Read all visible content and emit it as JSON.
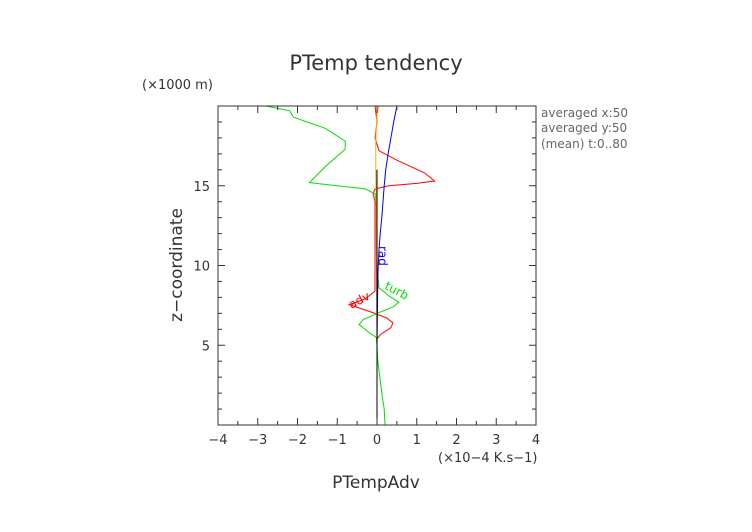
{
  "chart_data": {
    "type": "line",
    "title": "PTemp tendency",
    "xlabel": "PTempAdv",
    "ylabel": "z−coordinate",
    "x_scale_label": "(×10−4 K.s−1)",
    "y_scale_label": "(×1000 m)",
    "xlim": [
      -4,
      4
    ],
    "ylim": [
      0,
      20
    ],
    "x_ticks": [
      -4,
      -3,
      -2,
      -1,
      0,
      1,
      2,
      3,
      4
    ],
    "x_tick_labels": [
      "−4",
      "−3",
      "−2",
      "−1",
      "0",
      "1",
      "2",
      "3",
      "4"
    ],
    "y_ticks": [
      5,
      10,
      15
    ],
    "y_tick_labels": [
      "5",
      "10",
      "15"
    ],
    "grid": false,
    "annotations": [
      "averaged  x:50",
      "averaged  y:50",
      "(mean) t:0..80"
    ],
    "series": [
      {
        "name": "adv",
        "color": "#ff0000",
        "label_at": [
          -0.4,
          7.6
        ],
        "label_rotate": -28,
        "points": [
          [
            0,
            0
          ],
          [
            0,
            5.4
          ],
          [
            0.1,
            5.7
          ],
          [
            0.35,
            6.1
          ],
          [
            0.4,
            6.4
          ],
          [
            0.25,
            6.7
          ],
          [
            -0.05,
            7
          ],
          [
            -0.4,
            7.3
          ],
          [
            -0.7,
            7.55
          ],
          [
            -0.3,
            7.9
          ],
          [
            -0.05,
            8.4
          ],
          [
            -0.05,
            10
          ],
          [
            -0.05,
            12
          ],
          [
            -0.05,
            14
          ],
          [
            -0.1,
            14.5
          ],
          [
            -0.05,
            14.8
          ],
          [
            0.3,
            15
          ],
          [
            1.0,
            15.15
          ],
          [
            1.45,
            15.3
          ],
          [
            1.2,
            15.8
          ],
          [
            0.5,
            16.6
          ],
          [
            0.05,
            17.2
          ],
          [
            -0.05,
            18
          ],
          [
            0,
            19
          ],
          [
            -0.05,
            20
          ]
        ]
      },
      {
        "name": "turb",
        "color": "#00dd00",
        "label_at": [
          0.45,
          8.2
        ],
        "label_rotate": 28,
        "points": [
          [
            0.2,
            0
          ],
          [
            0.18,
            1
          ],
          [
            0.12,
            2
          ],
          [
            0.07,
            3
          ],
          [
            0.02,
            4
          ],
          [
            0,
            5
          ],
          [
            -0.02,
            5.5
          ],
          [
            -0.2,
            5.8
          ],
          [
            -0.45,
            6.3
          ],
          [
            -0.35,
            6.6
          ],
          [
            0,
            7
          ],
          [
            0.4,
            7.4
          ],
          [
            0.55,
            7.7
          ],
          [
            0.3,
            8.1
          ],
          [
            0.05,
            8.6
          ],
          [
            0,
            10
          ],
          [
            0,
            12
          ],
          [
            0,
            13.5
          ],
          [
            -0.05,
            14.5
          ],
          [
            -0.3,
            14.8
          ],
          [
            -1.7,
            15.2
          ],
          [
            -1.3,
            16.2
          ],
          [
            -0.8,
            17.3
          ],
          [
            -0.8,
            17.8
          ],
          [
            -1.3,
            18.6
          ],
          [
            -2.1,
            19.3
          ],
          [
            -2.2,
            19.7
          ],
          [
            -2.8,
            20
          ]
        ]
      },
      {
        "name": "rad",
        "color": "#0000ee",
        "label_at": [
          0.04,
          10.6
        ],
        "label_rotate": 90,
        "points": [
          [
            0,
            0
          ],
          [
            0,
            3
          ],
          [
            0,
            5
          ],
          [
            0.01,
            7
          ],
          [
            0.02,
            9
          ],
          [
            0.03,
            10
          ],
          [
            0.05,
            11
          ],
          [
            0.08,
            12
          ],
          [
            0.12,
            13
          ],
          [
            0.15,
            14
          ],
          [
            0.18,
            15
          ],
          [
            0.22,
            16
          ],
          [
            0.28,
            17
          ],
          [
            0.35,
            18
          ],
          [
            0.42,
            19
          ],
          [
            0.5,
            20
          ]
        ]
      },
      {
        "name": "",
        "color": "#ffaa00",
        "points": [
          [
            0,
            0
          ],
          [
            0,
            5
          ],
          [
            -0.01,
            9
          ],
          [
            -0.02,
            12
          ],
          [
            -0.02,
            14
          ],
          [
            -0.03,
            16
          ],
          [
            -0.03,
            18
          ],
          [
            0,
            19.5
          ],
          [
            0.05,
            20
          ]
        ]
      },
      {
        "name": "",
        "color": "#000000",
        "points": [
          [
            0,
            0
          ],
          [
            0,
            5
          ],
          [
            0,
            8
          ],
          [
            0,
            10
          ],
          [
            0,
            12
          ],
          [
            0,
            14
          ],
          [
            0,
            15
          ],
          [
            0,
            16
          ]
        ]
      }
    ]
  }
}
